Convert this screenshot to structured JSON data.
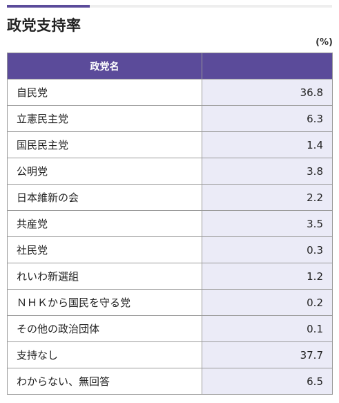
{
  "page": {
    "title": "政党支持率",
    "unit": "(%)"
  },
  "table": {
    "headers": [
      "政党名",
      ""
    ],
    "rows": [
      {
        "party": "自民党",
        "value": "36.8"
      },
      {
        "party": "立憲民主党",
        "value": "6.3"
      },
      {
        "party": "国民民主党",
        "value": "1.4"
      },
      {
        "party": "公明党",
        "value": "3.8"
      },
      {
        "party": "日本維新の会",
        "value": "2.2"
      },
      {
        "party": "共産党",
        "value": "3.5"
      },
      {
        "party": "社民党",
        "value": "0.3"
      },
      {
        "party": "れいわ新選組",
        "value": "1.2"
      },
      {
        "party": "ＮＨＫから国民を守る党",
        "value": "0.2"
      },
      {
        "party": "その他の政治団体",
        "value": "0.1"
      },
      {
        "party": "支持なし",
        "value": "37.7"
      },
      {
        "party": "わからない、無回答",
        "value": "6.5"
      }
    ]
  },
  "colors": {
    "accent": "#5b4b9a",
    "header_bg": "#5b4b9a",
    "value_cell_bg": "#ebebf7",
    "border": "#9a9a9a"
  }
}
